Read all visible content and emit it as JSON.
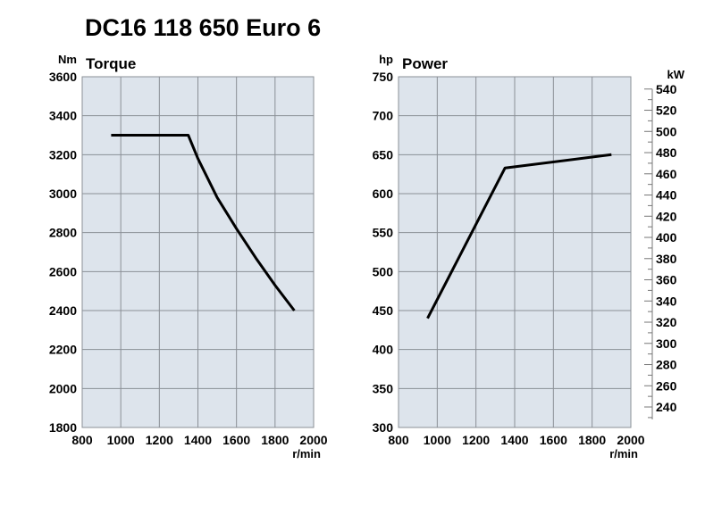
{
  "title": "DC16 118 650 Euro 6",
  "colors": {
    "plot_bg": "#dde4ec",
    "grid": "#8a8f96",
    "line": "#000000"
  },
  "chart_data": [
    {
      "type": "line",
      "title": "Torque",
      "ylabel": "Nm",
      "xlabel": "r/min",
      "xlim": [
        800,
        2000
      ],
      "ylim": [
        1800,
        3600
      ],
      "x_ticks": [
        800,
        1000,
        1200,
        1400,
        1600,
        1800,
        2000
      ],
      "y_ticks": [
        1800,
        2000,
        2200,
        2400,
        2600,
        2800,
        3000,
        3200,
        3400,
        3600
      ],
      "grid": true,
      "series": [
        {
          "x": [
            950,
            1350,
            1400,
            1500,
            1600,
            1700,
            1800,
            1900
          ],
          "y": [
            3300,
            3300,
            3180,
            2980,
            2820,
            2670,
            2530,
            2400
          ]
        }
      ]
    },
    {
      "type": "line",
      "title": "Power",
      "ylabel": "hp",
      "y2label": "kW",
      "xlabel": "r/min",
      "xlim": [
        800,
        2000
      ],
      "ylim": [
        300,
        750
      ],
      "y2lim": [
        220.65,
        551.6
      ],
      "x_ticks": [
        800,
        1000,
        1200,
        1400,
        1600,
        1800,
        2000
      ],
      "y_ticks": [
        300,
        350,
        400,
        450,
        500,
        550,
        600,
        650,
        700,
        750
      ],
      "y2_ticks": [
        240,
        260,
        280,
        300,
        320,
        340,
        360,
        380,
        400,
        420,
        440,
        460,
        480,
        500,
        520,
        540
      ],
      "grid": true,
      "series": [
        {
          "x": [
            950,
            1350,
            1900
          ],
          "y": [
            440,
            633,
            650
          ]
        }
      ]
    }
  ]
}
